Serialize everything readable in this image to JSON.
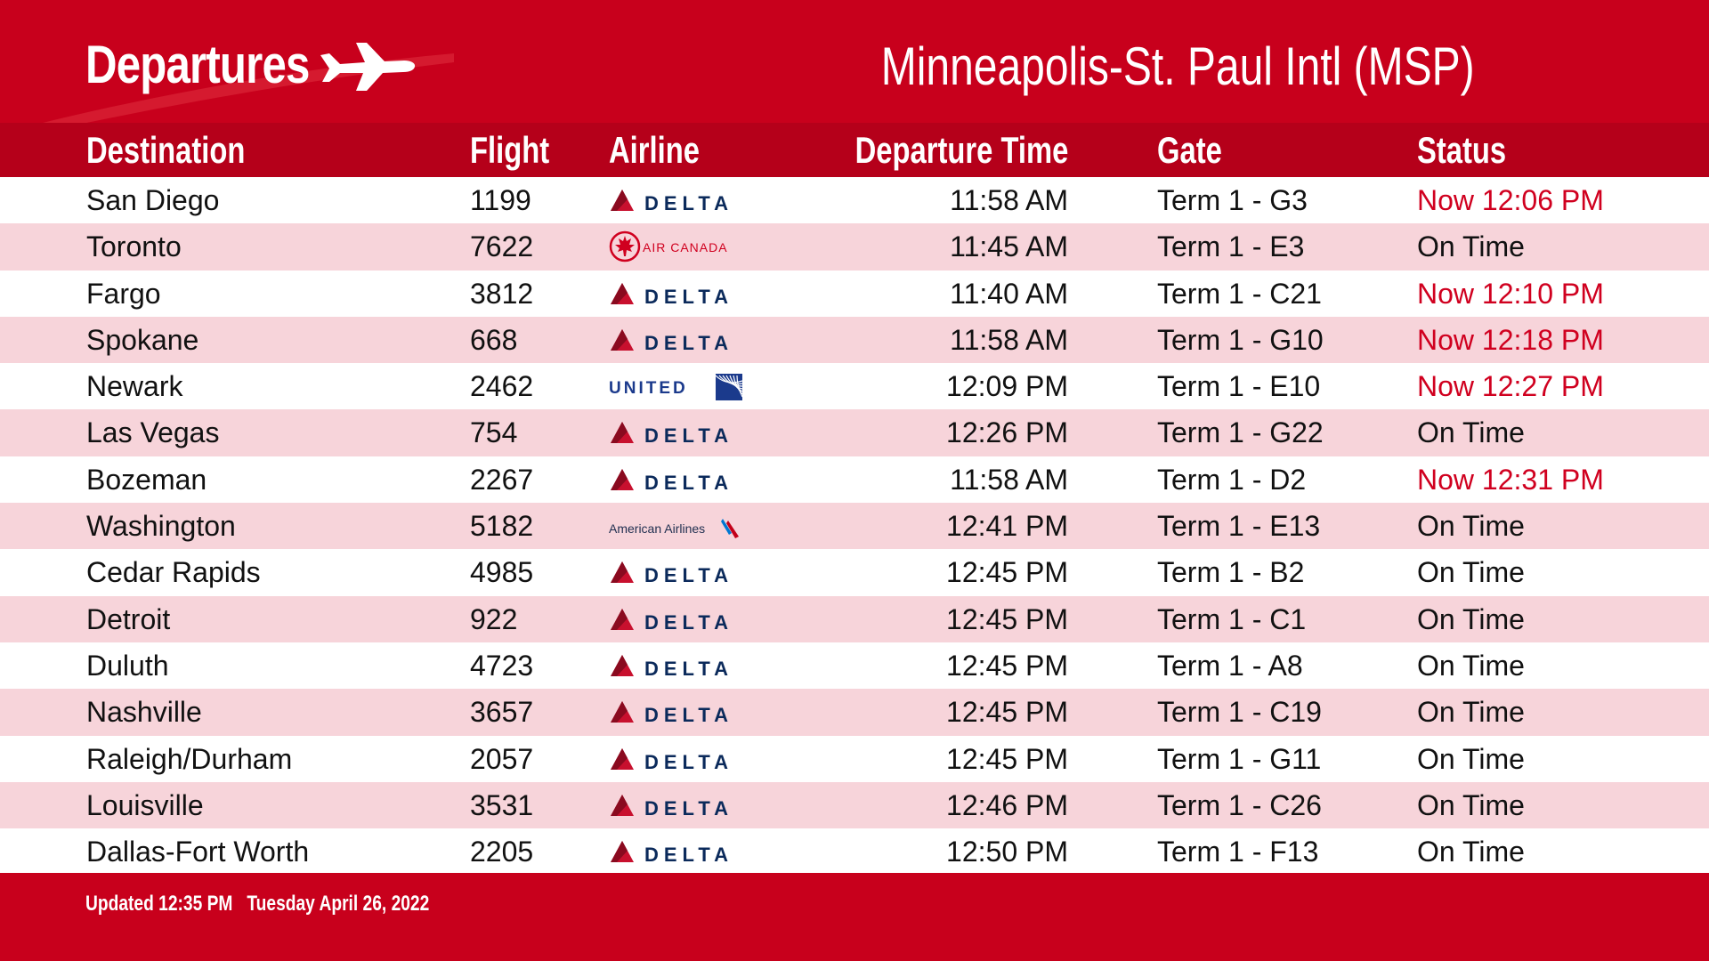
{
  "header": {
    "title": "Departures",
    "airport": "Minneapolis-St. Paul Intl (MSP)",
    "plane_icon": "airplane-icon"
  },
  "columns": {
    "destination": "Destination",
    "flight": "Flight",
    "airline": "Airline",
    "departure_time": "Departure Time",
    "gate": "Gate",
    "status": "Status"
  },
  "airline_logos": {
    "DELTA": "DELTA",
    "AIR CANADA": "AIR CANADA",
    "UNITED": "UNITED",
    "American Airlines": "American Airlines"
  },
  "flights": [
    {
      "destination": "San Diego",
      "flight": "1199",
      "airline": "DELTA",
      "time": "11:58 AM",
      "gate": "Term 1 - G3",
      "status": "Now 12:06 PM",
      "delayed": true
    },
    {
      "destination": "Toronto",
      "flight": "7622",
      "airline": "AIR CANADA",
      "time": "11:45 AM",
      "gate": "Term 1 - E3",
      "status": "On Time",
      "delayed": false
    },
    {
      "destination": "Fargo",
      "flight": "3812",
      "airline": "DELTA",
      "time": "11:40 AM",
      "gate": "Term 1 - C21",
      "status": "Now 12:10 PM",
      "delayed": true
    },
    {
      "destination": "Spokane",
      "flight": "668",
      "airline": "DELTA",
      "time": "11:58 AM",
      "gate": "Term 1 - G10",
      "status": "Now 12:18 PM",
      "delayed": true
    },
    {
      "destination": "Newark",
      "flight": "2462",
      "airline": "UNITED",
      "time": "12:09 PM",
      "gate": "Term 1 - E10",
      "status": "Now 12:27 PM",
      "delayed": true
    },
    {
      "destination": "Las Vegas",
      "flight": "754",
      "airline": "DELTA",
      "time": "12:26 PM",
      "gate": "Term 1 - G22",
      "status": "On Time",
      "delayed": false
    },
    {
      "destination": "Bozeman",
      "flight": "2267",
      "airline": "DELTA",
      "time": "11:58 AM",
      "gate": "Term 1 - D2",
      "status": "Now 12:31 PM",
      "delayed": true
    },
    {
      "destination": "Washington",
      "flight": "5182",
      "airline": "American Airlines",
      "time": "12:41 PM",
      "gate": "Term 1 - E13",
      "status": "On Time",
      "delayed": false
    },
    {
      "destination": "Cedar Rapids",
      "flight": "4985",
      "airline": "DELTA",
      "time": "12:45 PM",
      "gate": "Term 1 - B2",
      "status": "On Time",
      "delayed": false
    },
    {
      "destination": "Detroit",
      "flight": "922",
      "airline": "DELTA",
      "time": "12:45 PM",
      "gate": "Term 1 - C1",
      "status": "On Time",
      "delayed": false
    },
    {
      "destination": "Duluth",
      "flight": "4723",
      "airline": "DELTA",
      "time": "12:45 PM",
      "gate": "Term 1 - A8",
      "status": "On Time",
      "delayed": false
    },
    {
      "destination": "Nashville",
      "flight": "3657",
      "airline": "DELTA",
      "time": "12:45 PM",
      "gate": "Term 1 - C19",
      "status": "On Time",
      "delayed": false
    },
    {
      "destination": "Raleigh/Durham",
      "flight": "2057",
      "airline": "DELTA",
      "time": "12:45 PM",
      "gate": "Term 1 - G11",
      "status": "On Time",
      "delayed": false
    },
    {
      "destination": "Louisville",
      "flight": "3531",
      "airline": "DELTA",
      "time": "12:46 PM",
      "gate": "Term 1 - C26",
      "status": "On Time",
      "delayed": false
    },
    {
      "destination": "Dallas-Fort Worth",
      "flight": "2205",
      "airline": "DELTA",
      "time": "12:50 PM",
      "gate": "Term 1 - F13",
      "status": "On Time",
      "delayed": false
    }
  ],
  "footer": {
    "updated": "Updated 12:35 PM   Tuesday April 26, 2022"
  },
  "colors": {
    "brand_red": "#c8001c",
    "header_row_red": "#b5001a",
    "alt_row_pink": "#f7d4da",
    "delayed_text": "#d0001f",
    "delta_navy": "#0b2a5b",
    "delta_red": "#c8102e",
    "united_blue": "#1b3a8c"
  }
}
